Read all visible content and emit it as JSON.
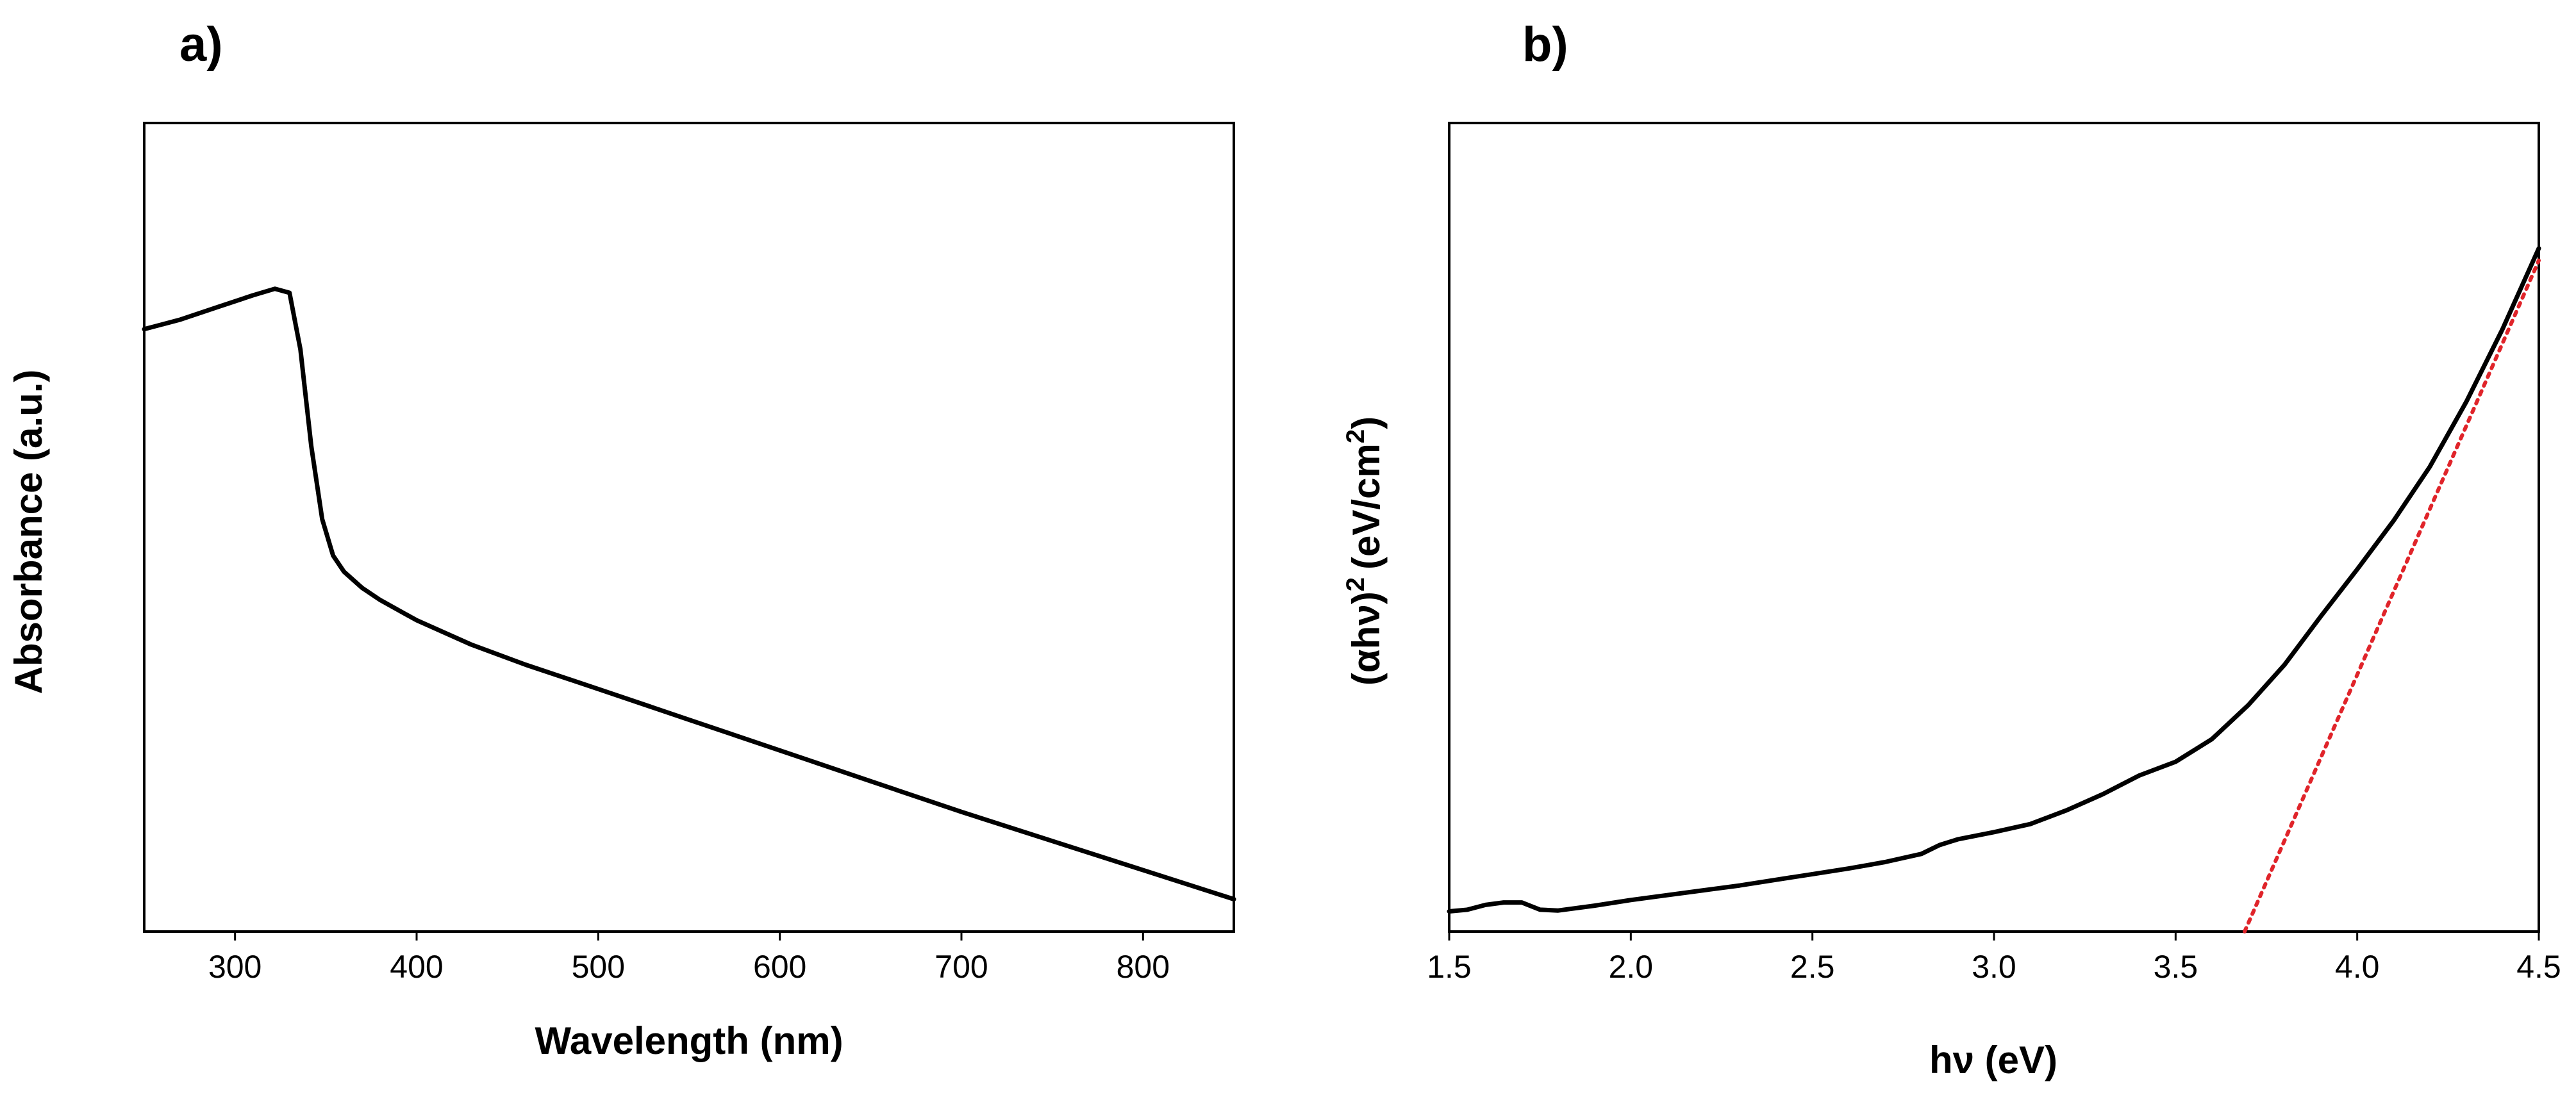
{
  "chart_data": [
    {
      "panel": "a)",
      "type": "line",
      "title": "",
      "xlabel": "Wavelength (nm)",
      "ylabel": "Absorbance (a.u.)",
      "xlim": [
        250,
        850
      ],
      "ylim": [
        0,
        1
      ],
      "xticks": [
        300,
        400,
        500,
        600,
        700,
        800
      ],
      "xtick_labels": [
        "300",
        "400",
        "500",
        "600",
        "700",
        "800"
      ],
      "yticks_shown": false,
      "grid": false,
      "series": [
        {
          "name": "Absorbance",
          "color": "#000000",
          "x": [
            250,
            270,
            290,
            310,
            322,
            330,
            336,
            342,
            348,
            354,
            360,
            370,
            380,
            400,
            430,
            460,
            500,
            550,
            600,
            650,
            700,
            750,
            800,
            850
          ],
          "y": [
            0.745,
            0.757,
            0.772,
            0.787,
            0.795,
            0.79,
            0.72,
            0.6,
            0.51,
            0.465,
            0.445,
            0.425,
            0.41,
            0.385,
            0.355,
            0.33,
            0.3,
            0.262,
            0.224,
            0.186,
            0.148,
            0.112,
            0.076,
            0.04
          ]
        }
      ]
    },
    {
      "panel": "b)",
      "type": "line",
      "title": "",
      "xlabel": "hν (eV)",
      "ylabel": "(αhν)",
      "ylabel_sup1": "2",
      "ylabel_units": "(eV/cm",
      "ylabel_sup2": "2",
      "ylabel_close": ")",
      "xlim": [
        1.5,
        4.5
      ],
      "ylim": [
        0,
        1
      ],
      "xticks": [
        1.5,
        2.0,
        2.5,
        3.0,
        3.5,
        4.0,
        4.5
      ],
      "xtick_labels": [
        "1.5",
        "2.0",
        "2.5",
        "3.0",
        "3.5",
        "4.0",
        "4.5"
      ],
      "yticks_shown": false,
      "grid": false,
      "series": [
        {
          "name": "(αhν)^2",
          "color": "#000000",
          "style": "solid",
          "x": [
            1.5,
            1.55,
            1.6,
            1.65,
            1.7,
            1.75,
            1.8,
            1.9,
            2.0,
            2.1,
            2.2,
            2.3,
            2.4,
            2.5,
            2.6,
            2.7,
            2.8,
            2.85,
            2.9,
            3.0,
            3.1,
            3.2,
            3.3,
            3.4,
            3.5,
            3.6,
            3.7,
            3.8,
            3.9,
            4.0,
            4.1,
            4.2,
            4.3,
            4.4,
            4.5
          ],
          "y": [
            0.025,
            0.027,
            0.033,
            0.036,
            0.036,
            0.027,
            0.026,
            0.032,
            0.039,
            0.045,
            0.051,
            0.057,
            0.064,
            0.071,
            0.078,
            0.086,
            0.096,
            0.107,
            0.114,
            0.123,
            0.133,
            0.15,
            0.17,
            0.193,
            0.21,
            0.238,
            0.28,
            0.33,
            0.39,
            0.448,
            0.508,
            0.575,
            0.655,
            0.745,
            0.845
          ]
        },
        {
          "name": "linear fit",
          "color": "#e0242a",
          "style": "dotted",
          "x": [
            3.69,
            4.5
          ],
          "y": [
            0.0,
            0.83
          ]
        }
      ]
    }
  ]
}
